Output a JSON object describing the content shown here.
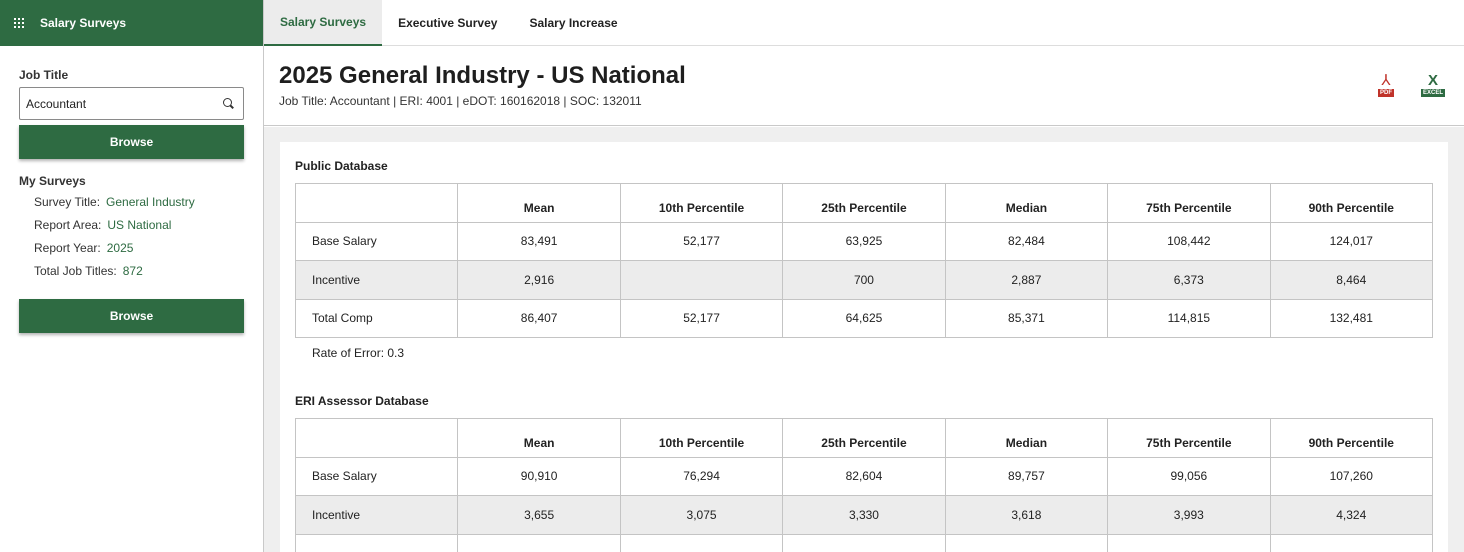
{
  "sidebar": {
    "brand": "Salary Surveys",
    "job_title_label": "Job Title",
    "job_title_value": "Accountant",
    "browse_label": "Browse",
    "my_surveys_label": "My Surveys",
    "survey_title_label": "Survey Title:",
    "survey_title_value": "General Industry",
    "report_area_label": "Report Area:",
    "report_area_value": "US National",
    "report_year_label": "Report Year:",
    "report_year_value": "2025",
    "total_titles_label": "Total Job Titles:",
    "total_titles_value": "872",
    "browse_label_2": "Browse"
  },
  "tabs": [
    {
      "label": "Salary Surveys",
      "active": true
    },
    {
      "label": "Executive Survey",
      "active": false
    },
    {
      "label": "Salary Increase",
      "active": false
    }
  ],
  "header": {
    "title": "2025 General Industry - US National",
    "subtitle": "Job Title: Accountant | ERI: 4001 | eDOT: 160162018 | SOC: 132011",
    "pdf_label": "PDF",
    "excel_label": "EXCEL"
  },
  "columns": [
    "",
    "Mean",
    "10th Percentile",
    "25th Percentile",
    "Median",
    "75th Percentile",
    "90th Percentile"
  ],
  "public_db": {
    "title": "Public Database",
    "rows": [
      [
        "Base Salary",
        "83,491",
        "52,177",
        "63,925",
        "82,484",
        "108,442",
        "124,017"
      ],
      [
        "Incentive",
        "2,916",
        "",
        "700",
        "2,887",
        "6,373",
        "8,464"
      ],
      [
        "Total Comp",
        "86,407",
        "52,177",
        "64,625",
        "85,371",
        "114,815",
        "132,481"
      ]
    ],
    "rate_of_error": "Rate of Error: 0.3"
  },
  "assessor_db": {
    "title": "ERI Assessor Database",
    "rows": [
      [
        "Base Salary",
        "90,910",
        "76,294",
        "82,604",
        "89,757",
        "99,056",
        "107,260"
      ],
      [
        "Incentive",
        "3,655",
        "3,075",
        "3,330",
        "3,618",
        "3,993",
        "4,324"
      ],
      [
        "",
        "",
        "",
        "",
        "",
        "",
        ""
      ]
    ]
  },
  "colors": {
    "brand_green": "#2e6b42",
    "pdf_red": "#c0332a"
  }
}
